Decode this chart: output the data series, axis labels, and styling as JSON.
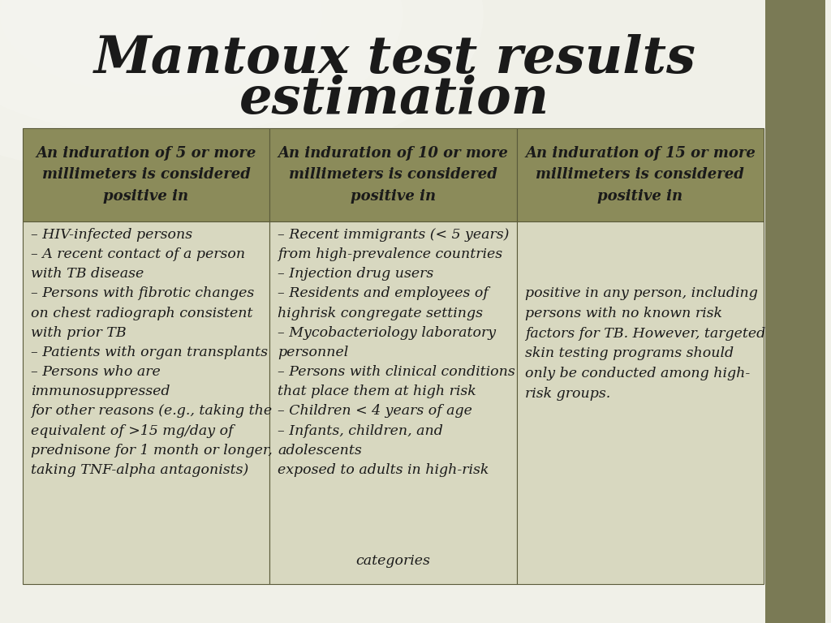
{
  "title_line1": "Mantoux test results",
  "title_line2": "estimation",
  "title_fontsize": 46,
  "title_color": "#1a1a1a",
  "background_color": "#e8e8e0",
  "header_bg_color": "#8b8b5a",
  "header_text_color": "#1a1a1a",
  "cell_bg_color": "#d8d8c0",
  "cell_text_color": "#1a1a1a",
  "right_sidebar_color": "#7a7a55",
  "col_headers": [
    "An induration of 5 or more\nmillimeters is considered\npositive in",
    "An induration of 10 or more\nmillimeters is considered\npositive in",
    "An induration of 15 or more\nmillimeters is considered\npositive in"
  ],
  "col1_body": "– HIV-infected persons\n– A recent contact of a person\nwith TB disease\n– Persons with fibrotic changes\non chest radiograph consistent\nwith prior TB\n– Patients with organ transplants\n– Persons who are\nimmunosuppressed\nfor other reasons (e.g., taking the\nequivalent of >15 mg/day of\nprednisone for 1 month or longer,\ntaking TNF-alpha antagonists)",
  "col2_body": "– Recent immigrants (< 5 years)\nfrom high-prevalence countries\n– Injection drug users\n– Residents and employees of\nhighrisk congregate settings\n– Mycobacteriology laboratory\npersonnel\n– Persons with clinical conditions\nthat place them at high risk\n– Children < 4 years of age\n– Infants, children, and\nadolescents\nexposed to adults in high-risk\n\ncategories",
  "col3_body": "positive in any person, including\npersons with no known risk\nfactors for TB. However, targeted\nskin testing programs should\nonly be conducted among high-\nrisk groups.",
  "header_fontsize": 13,
  "body_fontsize": 12.5
}
